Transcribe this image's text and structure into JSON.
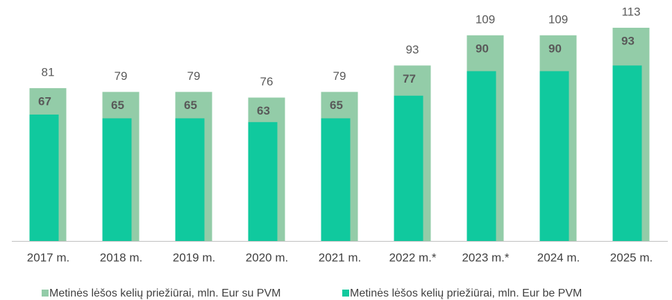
{
  "chart_data": {
    "type": "overlap_bar",
    "categories": [
      "2017 m.",
      "2018 m.",
      "2019 m.",
      "2020 m.",
      "2021 m.",
      "2022 m.*",
      "2023 m.*",
      "2024 m.",
      "2025 m."
    ],
    "series": [
      {
        "name": "Metinės lėšos kelių priežiūrai, mln. Eur su PVM",
        "color": "#93cca8",
        "values": [
          81,
          79,
          79,
          76,
          79,
          93,
          109,
          109,
          113
        ]
      },
      {
        "name": "Metinės lėšos kelių priežiūrai, mln. Eur be PVM",
        "color": "#10c99e",
        "values": [
          67,
          65,
          65,
          63,
          65,
          77,
          90,
          90,
          93
        ]
      }
    ],
    "legend": "bottom"
  }
}
